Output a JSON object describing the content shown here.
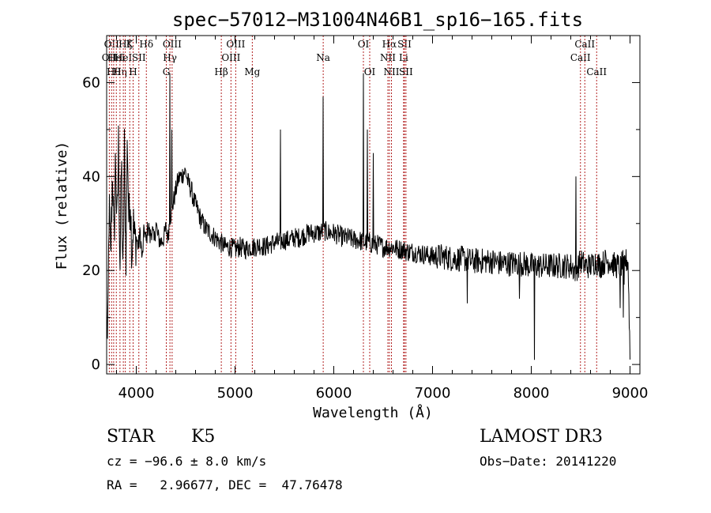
{
  "chart_data": {
    "type": "line",
    "title": "spec−57012−M31004N46B1_sp16−165.fits",
    "xlabel": "Wavelength (Å)",
    "ylabel": "Flux (relative)",
    "xlim": [
      3700,
      9100
    ],
    "ylim": [
      -2,
      70
    ],
    "x_ticks": [
      4000,
      5000,
      6000,
      7000,
      8000,
      9000
    ],
    "y_ticks": [
      0,
      20,
      40,
      60
    ],
    "grid": false,
    "line_color": "#000000",
    "marker_color": "#b22222",
    "spectrum_anchors": [
      [
        3700,
        12
      ],
      [
        3710,
        2
      ],
      [
        3725,
        34
      ],
      [
        3740,
        22
      ],
      [
        3760,
        42
      ],
      [
        3775,
        24
      ],
      [
        3790,
        45
      ],
      [
        3805,
        28
      ],
      [
        3820,
        47
      ],
      [
        3835,
        20
      ],
      [
        3850,
        44
      ],
      [
        3865,
        16
      ],
      [
        3880,
        46
      ],
      [
        3895,
        22
      ],
      [
        3910,
        49
      ],
      [
        3925,
        30
      ],
      [
        3940,
        36
      ],
      [
        3955,
        24
      ],
      [
        3970,
        30
      ],
      [
        3985,
        26
      ],
      [
        4000,
        27
      ],
      [
        4020,
        25
      ],
      [
        4040,
        28
      ],
      [
        4060,
        22
      ],
      [
        4080,
        29
      ],
      [
        4100,
        26
      ],
      [
        4120,
        30
      ],
      [
        4140,
        27
      ],
      [
        4160,
        29
      ],
      [
        4180,
        26
      ],
      [
        4200,
        30
      ],
      [
        4220,
        27
      ],
      [
        4250,
        26
      ],
      [
        4280,
        27
      ],
      [
        4300,
        29
      ],
      [
        4320,
        27
      ],
      [
        4340,
        31
      ],
      [
        4360,
        33
      ],
      [
        4380,
        35
      ],
      [
        4400,
        37
      ],
      [
        4420,
        39
      ],
      [
        4440,
        40
      ],
      [
        4460,
        40
      ],
      [
        4480,
        41
      ],
      [
        4500,
        41
      ],
      [
        4520,
        39
      ],
      [
        4540,
        38
      ],
      [
        4560,
        37
      ],
      [
        4580,
        35
      ],
      [
        4600,
        34
      ],
      [
        4620,
        33
      ],
      [
        4650,
        31
      ],
      [
        4700,
        29
      ],
      [
        4750,
        28
      ],
      [
        4800,
        27
      ],
      [
        4850,
        26
      ],
      [
        4900,
        25
      ],
      [
        4950,
        25
      ],
      [
        5000,
        24.5
      ],
      [
        5050,
        25
      ],
      [
        5100,
        24.5
      ],
      [
        5150,
        25
      ],
      [
        5200,
        25
      ],
      [
        5250,
        25.5
      ],
      [
        5300,
        25
      ],
      [
        5350,
        25.5
      ],
      [
        5400,
        26
      ],
      [
        5450,
        26
      ],
      [
        5500,
        26.5
      ],
      [
        5550,
        26.5
      ],
      [
        5600,
        27
      ],
      [
        5650,
        27
      ],
      [
        5700,
        27.5
      ],
      [
        5750,
        28
      ],
      [
        5800,
        28
      ],
      [
        5850,
        28
      ],
      [
        5900,
        28.5
      ],
      [
        5950,
        28
      ],
      [
        6000,
        28
      ],
      [
        6050,
        27.5
      ],
      [
        6100,
        27
      ],
      [
        6150,
        27
      ],
      [
        6200,
        26.5
      ],
      [
        6250,
        26.5
      ],
      [
        6300,
        26
      ],
      [
        6350,
        26
      ],
      [
        6400,
        25.5
      ],
      [
        6450,
        25.5
      ],
      [
        6500,
        25
      ],
      [
        6550,
        25
      ],
      [
        6600,
        25
      ],
      [
        6650,
        24.5
      ],
      [
        6700,
        24.5
      ],
      [
        6750,
        24
      ],
      [
        6800,
        24
      ],
      [
        6900,
        23.5
      ],
      [
        7000,
        23
      ],
      [
        7100,
        23
      ],
      [
        7200,
        22.5
      ],
      [
        7300,
        22.5
      ],
      [
        7400,
        22
      ],
      [
        7500,
        22
      ],
      [
        7600,
        22
      ],
      [
        7700,
        21.5
      ],
      [
        7800,
        21.5
      ],
      [
        7900,
        21.5
      ],
      [
        8000,
        21
      ],
      [
        8100,
        21
      ],
      [
        8200,
        21
      ],
      [
        8300,
        21
      ],
      [
        8400,
        21
      ],
      [
        8450,
        20
      ],
      [
        8500,
        22
      ],
      [
        8550,
        21
      ],
      [
        8600,
        21
      ],
      [
        8650,
        22
      ],
      [
        8700,
        21
      ],
      [
        8750,
        22
      ],
      [
        8800,
        22
      ],
      [
        8850,
        21
      ],
      [
        8900,
        21
      ],
      [
        8950,
        22
      ],
      [
        8980,
        22
      ],
      [
        9000,
        2
      ]
    ],
    "spikes": [
      [
        4340,
        62
      ],
      [
        4360,
        50
      ],
      [
        5460,
        50
      ],
      [
        5890,
        57
      ],
      [
        6300,
        62
      ],
      [
        6340,
        50
      ],
      [
        6400,
        45
      ],
      [
        8450,
        40
      ],
      [
        8030,
        1
      ],
      [
        7350,
        13
      ],
      [
        7880,
        14
      ],
      [
        8900,
        12
      ],
      [
        8930,
        10
      ],
      [
        8940,
        17
      ]
    ],
    "line_markers": [
      {
        "wl": 3727,
        "row": 2,
        "label": "OII"
      },
      {
        "wl": 3750,
        "row": 1,
        "label": "OII"
      },
      {
        "wl": 3771,
        "row": 3,
        "label": "Hθ"
      },
      {
        "wl": 3798,
        "row": 2,
        "label": "HeI"
      },
      {
        "wl": 3835,
        "row": 3,
        "label": "Hη"
      },
      {
        "wl": 3869,
        "row": 2,
        "label": "HeI"
      },
      {
        "wl": 3889,
        "row": 1,
        "label": "Hζ"
      },
      {
        "wl": 3934,
        "row": 1,
        "label": "K"
      },
      {
        "wl": 3968,
        "row": 3,
        "label": "H"
      },
      {
        "wl": 4026,
        "row": 2,
        "label": "SII"
      },
      {
        "wl": 4102,
        "row": 1,
        "label": "Hδ"
      },
      {
        "wl": 4304,
        "row": 3,
        "label": "G"
      },
      {
        "wl": 4341,
        "row": 2,
        "label": "Hγ"
      },
      {
        "wl": 4363,
        "row": 1,
        "label": "OIII"
      },
      {
        "wl": 4861,
        "row": 3,
        "label": "Hβ"
      },
      {
        "wl": 4959,
        "row": 2,
        "label": "OIII"
      },
      {
        "wl": 5007,
        "row": 1,
        "label": "OIII"
      },
      {
        "wl": 5175,
        "row": 3,
        "label": "Mg"
      },
      {
        "wl": 5893,
        "row": 2,
        "label": "Na"
      },
      {
        "wl": 6300,
        "row": 1,
        "label": "OI"
      },
      {
        "wl": 6364,
        "row": 3,
        "label": "OI"
      },
      {
        "wl": 6548,
        "row": 2,
        "label": "NII"
      },
      {
        "wl": 6563,
        "row": 1,
        "label": "Hα"
      },
      {
        "wl": 6584,
        "row": 3,
        "label": "NII"
      },
      {
        "wl": 6707,
        "row": 2,
        "label": "Li"
      },
      {
        "wl": 6716,
        "row": 1,
        "label": "SII"
      },
      {
        "wl": 6731,
        "row": 3,
        "label": "SII"
      },
      {
        "wl": 8498,
        "row": 2,
        "label": "CaII"
      },
      {
        "wl": 8542,
        "row": 1,
        "label": "CaII"
      },
      {
        "wl": 8662,
        "row": 3,
        "label": "CaII"
      }
    ]
  },
  "info": {
    "class": "STAR",
    "subclass": "K5",
    "survey": "LAMOST DR3",
    "cz": "cz = −96.6 ± 8.0 km/s",
    "obs_date": "Obs−Date: 20141220",
    "radec": "RA =   2.96677, DEC =  47.76478"
  }
}
